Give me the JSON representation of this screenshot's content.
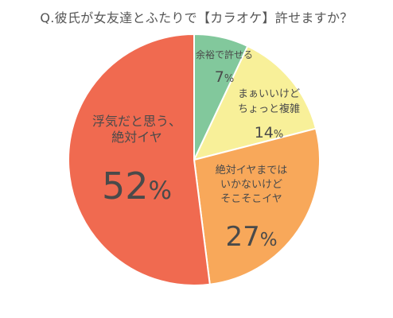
{
  "chart_data": {
    "type": "pie",
    "title": "Q.彼氏が女友達とふたりで【カラオケ】許せますか？",
    "slices": [
      {
        "label_lines": [
          "余裕で許せる"
        ],
        "value": 7,
        "value_text": "7%",
        "color": "#82c89c"
      },
      {
        "label_lines": [
          "まぁいいけど",
          "ちょっと複雑"
        ],
        "value": 14,
        "value_text": "14%",
        "color": "#f8f099"
      },
      {
        "label_lines": [
          "絶対イヤまでは",
          "いかないけど",
          "そこそこイヤ"
        ],
        "value": 27,
        "value_text": "27%",
        "color": "#f8a85a"
      },
      {
        "label_lines": [
          "浮気だと思う、",
          "絶対イヤ"
        ],
        "value": 52,
        "value_text": "52%",
        "color": "#f06a50"
      }
    ]
  }
}
